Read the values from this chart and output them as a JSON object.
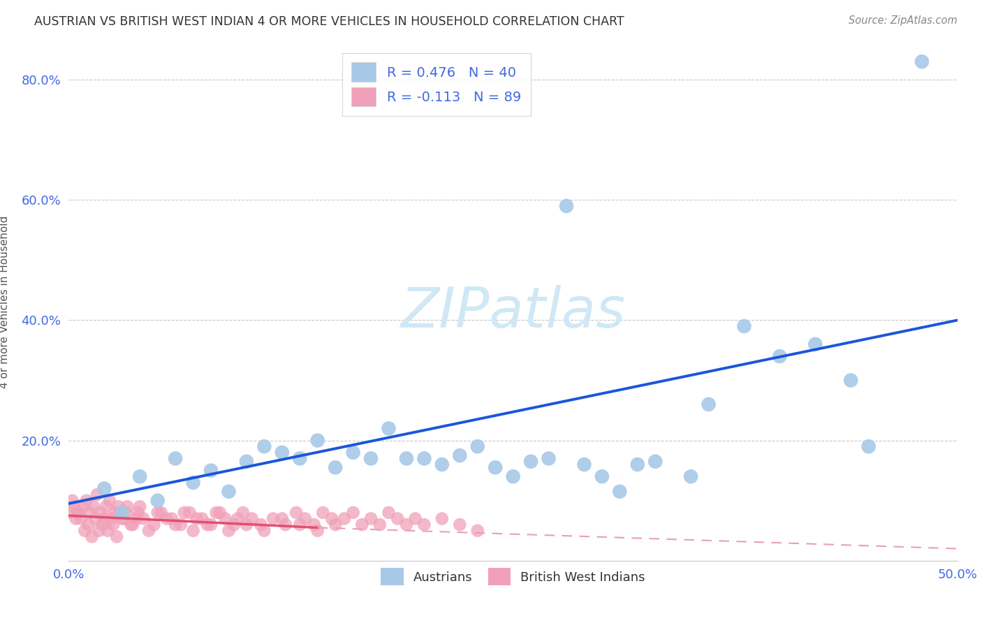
{
  "title": "AUSTRIAN VS BRITISH WEST INDIAN 4 OR MORE VEHICLES IN HOUSEHOLD CORRELATION CHART",
  "source": "Source: ZipAtlas.com",
  "ylabel": "4 or more Vehicles in Household",
  "xlim": [
    0.0,
    0.5
  ],
  "ylim": [
    0.0,
    0.86
  ],
  "xticks": [
    0.0,
    0.1,
    0.2,
    0.3,
    0.4,
    0.5
  ],
  "xticklabels": [
    "0.0%",
    "",
    "",
    "",
    "",
    "50.0%"
  ],
  "yticks": [
    0.0,
    0.2,
    0.4,
    0.6,
    0.8
  ],
  "yticklabels": [
    "",
    "20.0%",
    "40.0%",
    "60.0%",
    "80.0%"
  ],
  "austrians_r": 0.476,
  "austrians_n": 40,
  "bwi_r": -0.113,
  "bwi_n": 89,
  "legend_r_color": "#4169e1",
  "austrian_color": "#a8c8e8",
  "bwi_color": "#f0a0b8",
  "trendline_austrian_color": "#1a56db",
  "trendline_bwi_solid_color": "#e05070",
  "trendline_bwi_dash_color": "#e8a0b0",
  "watermark_color": "#d0e8f5",
  "background_color": "#ffffff",
  "grid_color": "#c8c8c8",
  "austrians_x": [
    0.48,
    0.44,
    0.4,
    0.38,
    0.36,
    0.33,
    0.31,
    0.3,
    0.28,
    0.26,
    0.25,
    0.24,
    0.23,
    0.22,
    0.21,
    0.2,
    0.19,
    0.18,
    0.17,
    0.16,
    0.15,
    0.14,
    0.13,
    0.12,
    0.11,
    0.1,
    0.09,
    0.08,
    0.07,
    0.06,
    0.05,
    0.04,
    0.03,
    0.02,
    0.32,
    0.29,
    0.27,
    0.35,
    0.42,
    0.45
  ],
  "austrians_y": [
    0.83,
    0.3,
    0.34,
    0.39,
    0.26,
    0.165,
    0.115,
    0.14,
    0.59,
    0.165,
    0.14,
    0.155,
    0.19,
    0.175,
    0.16,
    0.17,
    0.17,
    0.22,
    0.17,
    0.18,
    0.155,
    0.2,
    0.17,
    0.18,
    0.19,
    0.165,
    0.115,
    0.15,
    0.13,
    0.17,
    0.1,
    0.14,
    0.08,
    0.12,
    0.16,
    0.16,
    0.17,
    0.14,
    0.36,
    0.19
  ],
  "bwi_x_main": [
    0.005,
    0.007,
    0.008,
    0.009,
    0.01,
    0.011,
    0.012,
    0.013,
    0.014,
    0.015,
    0.016,
    0.017,
    0.018,
    0.019,
    0.02,
    0.021,
    0.022,
    0.023,
    0.024,
    0.025,
    0.026,
    0.027,
    0.028,
    0.03,
    0.032,
    0.035,
    0.038,
    0.04,
    0.045,
    0.05,
    0.055,
    0.06,
    0.065,
    0.07,
    0.075,
    0.08,
    0.085,
    0.09,
    0.095,
    0.1,
    0.11,
    0.12,
    0.13,
    0.14,
    0.003,
    0.004,
    0.006,
    0.029,
    0.031,
    0.033,
    0.036,
    0.039,
    0.042,
    0.048,
    0.052,
    0.058,
    0.063,
    0.068,
    0.072,
    0.078,
    0.083,
    0.088,
    0.093,
    0.098,
    0.103,
    0.108,
    0.115,
    0.122,
    0.128,
    0.133,
    0.138,
    0.143,
    0.148,
    0.002,
    0.001,
    0.15,
    0.155,
    0.16,
    0.165,
    0.17,
    0.175,
    0.18,
    0.185,
    0.19,
    0.195,
    0.2,
    0.21,
    0.22,
    0.23
  ],
  "bwi_y_main": [
    0.08,
    0.07,
    0.09,
    0.05,
    0.1,
    0.06,
    0.08,
    0.04,
    0.09,
    0.07,
    0.11,
    0.05,
    0.08,
    0.06,
    0.07,
    0.09,
    0.05,
    0.1,
    0.07,
    0.06,
    0.08,
    0.04,
    0.09,
    0.07,
    0.08,
    0.06,
    0.07,
    0.09,
    0.05,
    0.08,
    0.07,
    0.06,
    0.08,
    0.05,
    0.07,
    0.06,
    0.08,
    0.05,
    0.07,
    0.06,
    0.05,
    0.07,
    0.06,
    0.05,
    0.09,
    0.07,
    0.08,
    0.08,
    0.07,
    0.09,
    0.06,
    0.08,
    0.07,
    0.06,
    0.08,
    0.07,
    0.06,
    0.08,
    0.07,
    0.06,
    0.08,
    0.07,
    0.06,
    0.08,
    0.07,
    0.06,
    0.07,
    0.06,
    0.08,
    0.07,
    0.06,
    0.08,
    0.07,
    0.1,
    0.08,
    0.06,
    0.07,
    0.08,
    0.06,
    0.07,
    0.06,
    0.08,
    0.07,
    0.06,
    0.07,
    0.06,
    0.07,
    0.06,
    0.05
  ],
  "trendline_a_x0": 0.0,
  "trendline_a_x1": 0.5,
  "trendline_a_y0": 0.095,
  "trendline_a_y1": 0.4,
  "trendline_b_solid_x0": 0.0,
  "trendline_b_solid_x1": 0.14,
  "trendline_b_solid_y0": 0.075,
  "trendline_b_solid_y1": 0.055,
  "trendline_b_dash_x0": 0.14,
  "trendline_b_dash_x1": 0.5,
  "trendline_b_dash_y0": 0.055,
  "trendline_b_dash_y1": 0.02
}
